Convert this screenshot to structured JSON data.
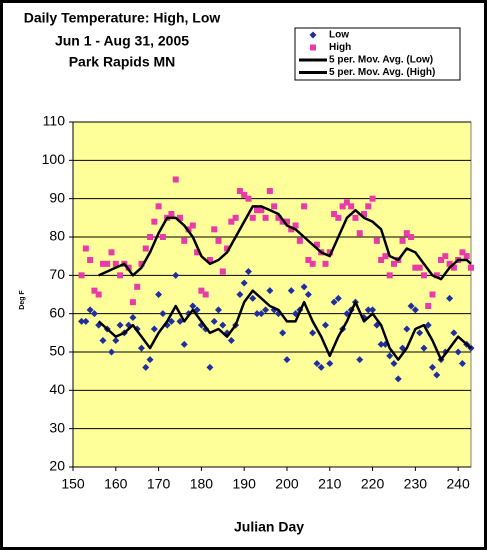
{
  "chart_data": {
    "type": "scatter",
    "title": [
      "Daily Temperature:  High, Low",
      "Jun 1 - Aug 31, 2005",
      "Park Rapids MN"
    ],
    "x_label": "Julian Day",
    "y_label": "Deg F",
    "xlim": [
      150,
      243
    ],
    "ylim": [
      20,
      110
    ],
    "xticks": [
      150,
      160,
      170,
      180,
      190,
      200,
      210,
      220,
      230,
      240
    ],
    "yticks": [
      20,
      30,
      40,
      50,
      60,
      70,
      80,
      90,
      100,
      110
    ],
    "grid": true,
    "legend": "top-right",
    "plot_background": "#ffff99",
    "series": [
      {
        "name": "Low",
        "color": "#1f2f9f",
        "marker": "diamond",
        "x": [
          152,
          153,
          154,
          155,
          156,
          157,
          158,
          159,
          160,
          161,
          162,
          163,
          164,
          165,
          166,
          167,
          168,
          169,
          170,
          171,
          172,
          173,
          174,
          175,
          176,
          177,
          178,
          179,
          180,
          181,
          182,
          183,
          184,
          185,
          186,
          187,
          188,
          189,
          190,
          191,
          192,
          193,
          194,
          195,
          196,
          197,
          198,
          199,
          200,
          201,
          202,
          203,
          204,
          205,
          206,
          207,
          208,
          209,
          210,
          211,
          212,
          213,
          214,
          215,
          216,
          217,
          218,
          219,
          220,
          221,
          222,
          223,
          224,
          225,
          226,
          227,
          228,
          229,
          230,
          231,
          232,
          233,
          234,
          235,
          236,
          237,
          238,
          239,
          240,
          241,
          242,
          243
        ],
        "values": [
          58,
          58,
          61,
          60,
          57,
          53,
          56,
          50,
          53,
          57,
          55,
          57,
          59,
          56,
          51,
          46,
          48,
          56,
          65,
          60,
          57,
          58,
          70,
          58,
          52,
          60,
          62,
          61,
          57,
          56,
          46,
          58,
          61,
          57,
          55,
          53,
          57,
          65,
          68,
          71,
          64,
          60,
          60,
          61,
          66,
          61,
          60,
          55,
          48,
          66,
          60,
          61,
          67,
          65,
          55,
          47,
          46,
          57,
          47,
          63,
          64,
          56,
          60,
          61,
          63,
          48,
          59,
          61,
          61,
          57,
          52,
          52,
          49,
          47,
          43,
          51,
          56,
          62,
          61,
          55,
          51,
          57,
          46,
          44,
          48,
          50,
          64,
          55,
          50,
          47,
          52,
          51
        ]
      },
      {
        "name": "High",
        "color": "#e83aa8",
        "marker": "square",
        "x": [
          152,
          153,
          154,
          155,
          156,
          157,
          158,
          159,
          160,
          161,
          162,
          163,
          164,
          165,
          166,
          167,
          168,
          169,
          170,
          171,
          172,
          173,
          174,
          175,
          176,
          177,
          178,
          179,
          180,
          181,
          182,
          183,
          184,
          185,
          186,
          187,
          188,
          189,
          190,
          191,
          192,
          193,
          194,
          195,
          196,
          197,
          198,
          199,
          200,
          201,
          202,
          203,
          204,
          205,
          206,
          207,
          208,
          209,
          210,
          211,
          212,
          213,
          214,
          215,
          216,
          217,
          218,
          219,
          220,
          221,
          222,
          223,
          224,
          225,
          226,
          227,
          228,
          229,
          230,
          231,
          232,
          233,
          234,
          235,
          236,
          237,
          238,
          239,
          240,
          241,
          242,
          243
        ],
        "values": [
          70,
          77,
          74,
          66,
          65,
          73,
          73,
          76,
          73,
          70,
          73,
          72,
          63,
          67,
          73,
          77,
          80,
          84,
          88,
          80,
          85,
          86,
          95,
          85,
          79,
          82,
          83,
          76,
          66,
          65,
          74,
          82,
          79,
          71,
          77,
          84,
          85,
          92,
          91,
          90,
          85,
          87,
          87,
          85,
          92,
          88,
          85,
          84,
          84,
          82,
          83,
          79,
          88,
          74,
          73,
          78,
          76,
          73,
          76,
          86,
          85,
          88,
          89,
          88,
          85,
          81,
          86,
          88,
          90,
          79,
          74,
          75,
          70,
          73,
          74,
          79,
          81,
          80,
          72,
          72,
          70,
          62,
          65,
          70,
          74,
          75,
          73,
          72,
          74,
          76,
          75,
          72
        ]
      },
      {
        "name": "5 per. Mov. Avg. (Low)",
        "color": "#000000",
        "marker": "line",
        "x": [
          156,
          158,
          160,
          162,
          164,
          166,
          168,
          170,
          172,
          174,
          176,
          178,
          180,
          182,
          184,
          186,
          188,
          190,
          192,
          194,
          196,
          198,
          200,
          202,
          204,
          206,
          208,
          210,
          212,
          214,
          216,
          218,
          220,
          222,
          224,
          226,
          228,
          230,
          232,
          234,
          236,
          238,
          240,
          242,
          243
        ],
        "values": [
          58,
          56,
          54,
          55,
          57,
          54,
          51,
          55,
          58,
          62,
          58,
          61,
          58,
          55,
          56,
          54,
          57,
          63,
          66,
          64,
          62,
          61,
          58,
          58,
          63,
          58,
          54,
          49,
          54,
          58,
          63,
          58,
          60,
          57,
          51,
          48,
          51,
          56,
          57,
          53,
          48,
          51,
          54,
          52,
          51
        ]
      },
      {
        "name": "5 per. Mov. Avg. (High)",
        "color": "#000000",
        "marker": "line",
        "x": [
          156,
          158,
          160,
          162,
          164,
          166,
          168,
          170,
          172,
          174,
          176,
          178,
          180,
          182,
          184,
          186,
          188,
          190,
          192,
          194,
          196,
          198,
          200,
          202,
          204,
          206,
          208,
          210,
          212,
          214,
          216,
          218,
          220,
          222,
          224,
          226,
          228,
          230,
          232,
          234,
          236,
          238,
          240,
          242,
          243
        ],
        "values": [
          70,
          71,
          72,
          73,
          70,
          72,
          76,
          81,
          85,
          85,
          83,
          80,
          75,
          73,
          74,
          76,
          80,
          84,
          88,
          88,
          87,
          86,
          83,
          82,
          80,
          78,
          76,
          75,
          80,
          85,
          87,
          85,
          84,
          82,
          75,
          74,
          77,
          76,
          73,
          70,
          69,
          72,
          74,
          74,
          73
        ]
      }
    ]
  }
}
